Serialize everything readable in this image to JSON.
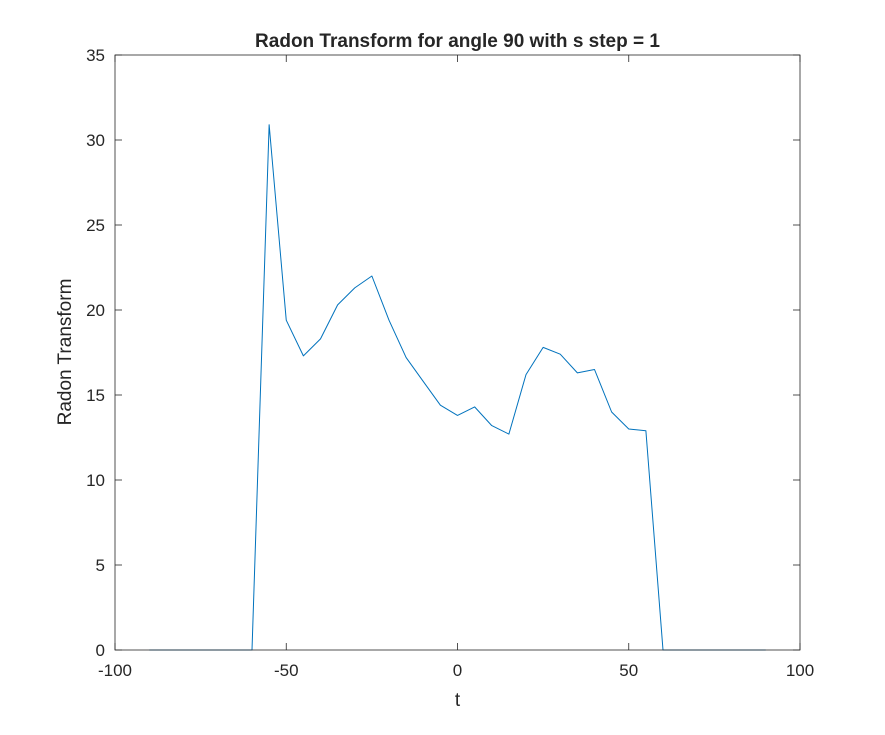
{
  "chart_data": {
    "type": "line",
    "title": "Radon Transform for angle 90 with s step = 1",
    "xlabel": "t",
    "ylabel": "Radon Transform",
    "xlim": [
      -100,
      100
    ],
    "ylim": [
      0,
      35
    ],
    "xticks": [
      -100,
      -50,
      0,
      50,
      100
    ],
    "yticks": [
      0,
      5,
      10,
      15,
      20,
      25,
      30,
      35
    ],
    "xtick_labels": [
      "-100",
      "-50",
      "0",
      "50",
      "100"
    ],
    "ytick_labels": [
      "0",
      "5",
      "10",
      "15",
      "20",
      "25",
      "30",
      "35"
    ],
    "grid": false,
    "legend": "none",
    "colors": {
      "line": "#0072BD",
      "axes": "#262626",
      "background": "#ffffff"
    },
    "series": [
      {
        "x": [
          -90,
          -85,
          -80,
          -75,
          -70,
          -65,
          -60,
          -55,
          -50,
          -45,
          -40,
          -35,
          -30,
          -25,
          -20,
          -15,
          -10,
          -5,
          0,
          5,
          10,
          15,
          20,
          25,
          30,
          35,
          40,
          45,
          50,
          55,
          60,
          65,
          70,
          75,
          80,
          85,
          90
        ],
        "y": [
          0,
          0,
          0,
          0,
          0,
          0,
          0,
          30.9,
          19.4,
          17.3,
          18.3,
          20.3,
          21.3,
          22.0,
          19.4,
          17.2,
          15.8,
          14.4,
          13.8,
          14.3,
          13.2,
          12.7,
          16.2,
          17.8,
          17.4,
          16.3,
          16.5,
          14.0,
          13.0,
          12.9,
          0,
          0,
          0,
          0,
          0,
          0,
          0
        ]
      }
    ]
  }
}
